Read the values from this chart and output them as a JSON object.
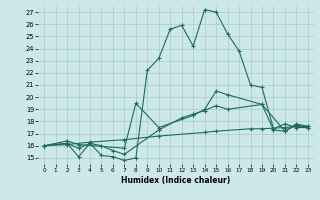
{
  "xlabel": "Humidex (Indice chaleur)",
  "bg_color": "#cce8e8",
  "line_color": "#1e6b5e",
  "grid_color": "#aacccc",
  "xlim": [
    -0.5,
    23.5
  ],
  "ylim": [
    14.5,
    27.5
  ],
  "xticks": [
    0,
    1,
    2,
    3,
    4,
    5,
    6,
    7,
    8,
    9,
    10,
    11,
    12,
    13,
    14,
    15,
    16,
    17,
    18,
    19,
    20,
    21,
    22,
    23
  ],
  "yticks": [
    15,
    16,
    17,
    18,
    19,
    20,
    21,
    22,
    23,
    24,
    25,
    26,
    27
  ],
  "line_main": {
    "x": [
      0,
      2,
      3,
      4,
      5,
      6,
      7,
      8,
      9,
      10,
      11,
      12,
      13,
      14,
      15,
      16,
      17,
      18,
      19,
      20,
      21,
      22,
      23
    ],
    "y": [
      16.0,
      16.2,
      15.1,
      16.2,
      15.2,
      15.1,
      14.8,
      15.0,
      22.2,
      23.2,
      25.6,
      25.9,
      24.2,
      27.2,
      27.0,
      25.2,
      23.8,
      21.0,
      20.8,
      17.4,
      17.8,
      17.5,
      17.5
    ]
  },
  "line_upper_mid": {
    "x": [
      0,
      2,
      3,
      7,
      8,
      10,
      13,
      14,
      15,
      16,
      19,
      20,
      21,
      22,
      23
    ],
    "y": [
      16.0,
      16.4,
      16.1,
      15.8,
      19.5,
      17.5,
      18.5,
      19.0,
      20.5,
      20.2,
      19.4,
      17.3,
      17.2,
      17.8,
      17.6
    ]
  },
  "line_lower_mid": {
    "x": [
      0,
      2,
      3,
      4,
      5,
      6,
      7,
      10,
      12,
      13,
      14,
      15,
      16,
      19,
      21,
      22,
      23
    ],
    "y": [
      16.0,
      16.2,
      15.8,
      16.2,
      16.0,
      15.6,
      15.3,
      17.3,
      18.3,
      18.6,
      18.9,
      19.3,
      19.0,
      19.4,
      17.2,
      17.7,
      17.5
    ]
  },
  "line_diagonal": {
    "x": [
      0,
      2,
      4,
      7,
      10,
      14,
      15,
      18,
      19,
      21,
      22,
      23
    ],
    "y": [
      16.0,
      16.1,
      16.3,
      16.5,
      16.8,
      17.1,
      17.2,
      17.4,
      17.4,
      17.5,
      17.6,
      17.6
    ]
  }
}
